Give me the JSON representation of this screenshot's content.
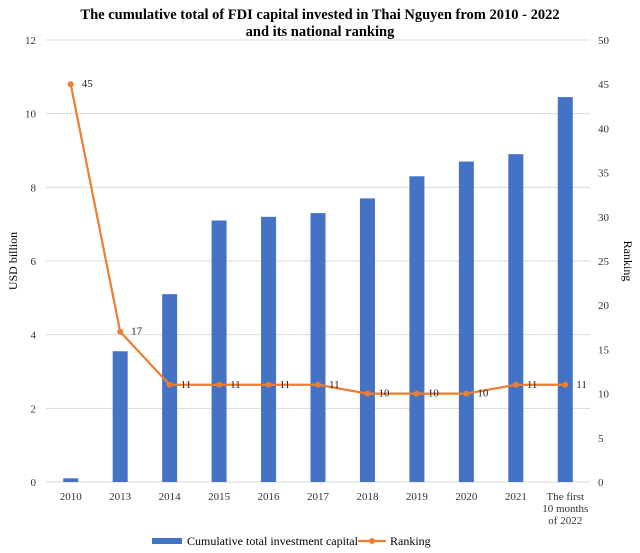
{
  "chart_data": {
    "type": "bar",
    "title_line1": "The cumulative total of FDI capital invested in Thai Nguyen from 2010 - 2022",
    "title_line2": "and its national ranking",
    "categories": [
      "2010",
      "2013",
      "2014",
      "2015",
      "2016",
      "2017",
      "2018",
      "2019",
      "2020",
      "2021",
      "The first 10 months of 2022"
    ],
    "category_label_lines": [
      [
        "2010"
      ],
      [
        "2013"
      ],
      [
        "2014"
      ],
      [
        "2015"
      ],
      [
        "2016"
      ],
      [
        "2017"
      ],
      [
        "2018"
      ],
      [
        "2019"
      ],
      [
        "2020"
      ],
      [
        "2021"
      ],
      [
        "The first",
        "10 months",
        "of 2022"
      ]
    ],
    "series": [
      {
        "name": "Cumulative total investment capital",
        "axis": "left",
        "type": "bar",
        "color": "#4472C4",
        "values": [
          0.1,
          3.55,
          5.1,
          7.1,
          7.2,
          7.3,
          7.7,
          8.3,
          8.7,
          8.9,
          10.45
        ]
      },
      {
        "name": "Ranking",
        "axis": "right",
        "type": "line",
        "color": "#ED7D31",
        "values": [
          45,
          17,
          11,
          11,
          11,
          11,
          10,
          10,
          10,
          11,
          11
        ],
        "data_labels": [
          "45",
          "17",
          "11",
          "11",
          "11",
          "11",
          "10",
          "10",
          "10",
          "11",
          "11"
        ]
      }
    ],
    "ylabel": "USD billion",
    "y2label": "Ranking",
    "ylim": [
      0,
      12
    ],
    "y2lim": [
      0,
      50
    ],
    "yticks": [
      "0",
      "2",
      "4",
      "6",
      "8",
      "10",
      "12"
    ],
    "y2ticks": [
      "0",
      "5",
      "10",
      "15",
      "20",
      "25",
      "30",
      "35",
      "40",
      "45",
      "50"
    ],
    "grid": true,
    "legend_position": "bottom"
  }
}
